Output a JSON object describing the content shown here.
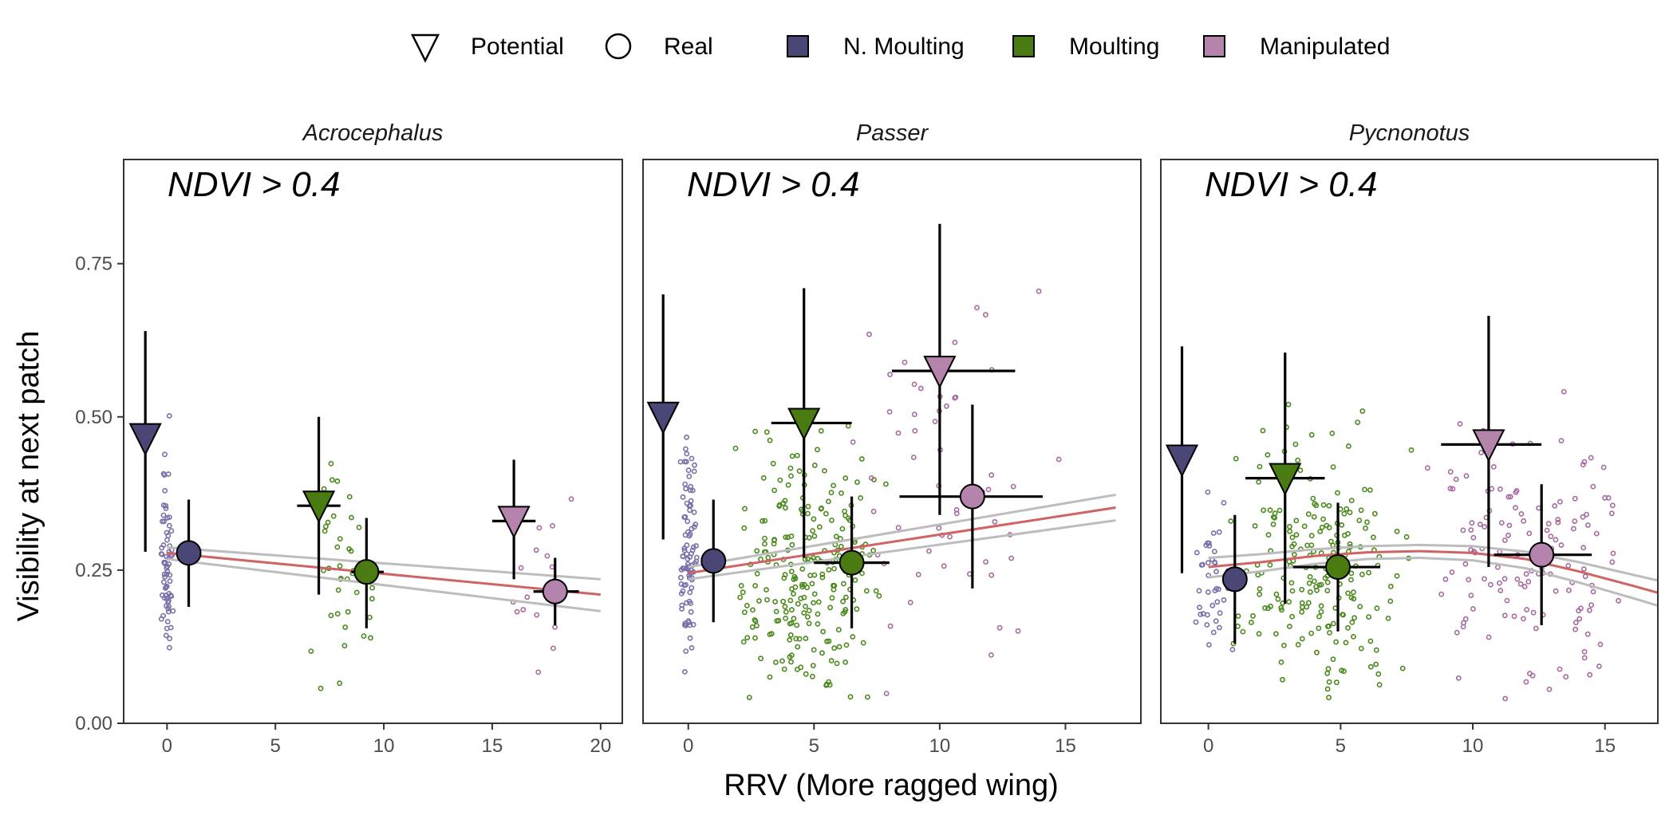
{
  "chart_data": {
    "type": "scatter",
    "xlabel": "RRV (More ragged wing)",
    "ylabel": "Visibility at next patch",
    "ylim": [
      0,
      0.92
    ],
    "yticks": [
      0.0,
      0.25,
      0.5,
      0.75
    ],
    "ytick_labels": [
      "0.00",
      "0.25",
      "0.50",
      "0.75"
    ],
    "grid": false,
    "legend_position": "top",
    "legend": {
      "shapes": [
        {
          "label": "Potential",
          "shape": "triangle-down"
        },
        {
          "label": "Real",
          "shape": "circle"
        }
      ],
      "groups": [
        {
          "label": "N. Moulting",
          "color": "#4a4777"
        },
        {
          "label": "Moulting",
          "color": "#4a7a12"
        },
        {
          "label": "Manipulated",
          "color": "#b484ac"
        }
      ]
    },
    "colors": {
      "nmoult_point": "#7a6fa8",
      "moult_point": "#4a8a1c",
      "manip_point": "#a66aa0",
      "fit": "#d06464",
      "band": "#bdbdbd"
    },
    "panels": [
      {
        "title": "Acrocephalus",
        "annotation": "NDVI > 0.4",
        "xlim": [
          -2,
          21
        ],
        "xticks": [
          0,
          5,
          10,
          15,
          20
        ],
        "xtick_labels": [
          "0",
          "5",
          "10",
          "15",
          "20"
        ],
        "fit": {
          "x": [
            0,
            20
          ],
          "y": [
            0.278,
            0.21
          ],
          "upper": [
            0.287,
            0.235
          ],
          "lower": [
            0.268,
            0.183
          ]
        },
        "summary": [
          {
            "group": "N. Moulting",
            "kind": "Potential",
            "x": -1,
            "y": 0.465,
            "ylo": 0.28,
            "yhi": 0.64,
            "xlo": null,
            "xhi": null
          },
          {
            "group": "N. Moulting",
            "kind": "Real",
            "x": 1,
            "y": 0.278,
            "ylo": 0.19,
            "yhi": 0.365,
            "xlo": null,
            "xhi": null
          },
          {
            "group": "Moulting",
            "kind": "Potential",
            "x": 7,
            "y": 0.355,
            "ylo": 0.21,
            "yhi": 0.5,
            "xlo": 6,
            "xhi": 8
          },
          {
            "group": "Moulting",
            "kind": "Real",
            "x": 9.2,
            "y": 0.247,
            "ylo": 0.155,
            "yhi": 0.335,
            "xlo": 8.5,
            "xhi": 10
          },
          {
            "group": "Manipulated",
            "kind": "Potential",
            "x": 16,
            "y": 0.33,
            "ylo": 0.235,
            "yhi": 0.43,
            "xlo": 15,
            "xhi": 17
          },
          {
            "group": "Manipulated",
            "kind": "Real",
            "x": 17.9,
            "y": 0.215,
            "ylo": 0.16,
            "yhi": 0.27,
            "xlo": 16.9,
            "xhi": 19
          }
        ],
        "points": [
          {
            "group": "N. Moulting",
            "x_center": 0,
            "x_spread": 0.35,
            "n": 70,
            "y_mean": 0.27,
            "y_sd": 0.085,
            "seed": 11
          },
          {
            "group": "Moulting",
            "x_center": 8.2,
            "x_spread": 1.9,
            "n": 40,
            "y_mean": 0.24,
            "y_sd": 0.08,
            "seed": 12
          },
          {
            "group": "Manipulated",
            "x_center": 17,
            "x_spread": 2.0,
            "n": 16,
            "y_mean": 0.22,
            "y_sd": 0.07,
            "seed": 13
          }
        ]
      },
      {
        "title": "Passer",
        "annotation": "NDVI > 0.4",
        "xlim": [
          -1.8,
          18
        ],
        "xticks": [
          0,
          5,
          10,
          15
        ],
        "xtick_labels": [
          "0",
          "5",
          "10",
          "15"
        ],
        "fit": {
          "x": [
            0,
            17
          ],
          "y": [
            0.245,
            0.352
          ],
          "upper": [
            0.255,
            0.373
          ],
          "lower": [
            0.235,
            0.331
          ]
        },
        "summary": [
          {
            "group": "N. Moulting",
            "kind": "Potential",
            "x": -1,
            "y": 0.5,
            "ylo": 0.3,
            "yhi": 0.7,
            "xlo": null,
            "xhi": null
          },
          {
            "group": "N. Moulting",
            "kind": "Real",
            "x": 1,
            "y": 0.265,
            "ylo": 0.165,
            "yhi": 0.365,
            "xlo": null,
            "xhi": null
          },
          {
            "group": "Moulting",
            "kind": "Potential",
            "x": 4.6,
            "y": 0.49,
            "ylo": 0.27,
            "yhi": 0.71,
            "xlo": 3.3,
            "xhi": 6.5
          },
          {
            "group": "Moulting",
            "kind": "Real",
            "x": 6.5,
            "y": 0.262,
            "ylo": 0.155,
            "yhi": 0.37,
            "xlo": 5,
            "xhi": 8
          },
          {
            "group": "Manipulated",
            "kind": "Potential",
            "x": 10,
            "y": 0.575,
            "ylo": 0.34,
            "yhi": 0.815,
            "xlo": 8.1,
            "xhi": 13
          },
          {
            "group": "Manipulated",
            "kind": "Real",
            "x": 11.3,
            "y": 0.37,
            "ylo": 0.22,
            "yhi": 0.52,
            "xlo": 8.4,
            "xhi": 14.1
          }
        ],
        "points": [
          {
            "group": "N. Moulting",
            "x_center": 0,
            "x_spread": 0.4,
            "n": 90,
            "y_mean": 0.27,
            "y_sd": 0.09,
            "seed": 21
          },
          {
            "group": "Moulting",
            "x_center": 4.9,
            "x_spread": 3.1,
            "n": 240,
            "y_mean": 0.25,
            "y_sd": 0.1,
            "seed": 22
          },
          {
            "group": "Manipulated",
            "x_center": 10.5,
            "x_spread": 4.5,
            "n": 55,
            "y_mean": 0.38,
            "y_sd": 0.13,
            "seed": 23
          }
        ]
      },
      {
        "title": "Pycnonotus",
        "annotation": "NDVI > 0.4",
        "xlim": [
          -1.8,
          17
        ],
        "xticks": [
          0,
          5,
          10,
          15
        ],
        "xtick_labels": [
          "0",
          "5",
          "10",
          "15"
        ],
        "fit": {
          "x": [
            0,
            2,
            4,
            6,
            8,
            10,
            12,
            14,
            16,
            17
          ],
          "y": [
            0.255,
            0.263,
            0.273,
            0.279,
            0.281,
            0.278,
            0.268,
            0.248,
            0.225,
            0.213
          ],
          "upper": [
            0.27,
            0.276,
            0.284,
            0.289,
            0.291,
            0.289,
            0.28,
            0.263,
            0.243,
            0.233
          ],
          "lower": [
            0.238,
            0.248,
            0.26,
            0.268,
            0.27,
            0.266,
            0.253,
            0.23,
            0.205,
            0.192
          ]
        },
        "summary": [
          {
            "group": "N. Moulting",
            "kind": "Potential",
            "x": -1,
            "y": 0.43,
            "ylo": 0.245,
            "yhi": 0.615,
            "xlo": null,
            "xhi": null
          },
          {
            "group": "N. Moulting",
            "kind": "Real",
            "x": 1,
            "y": 0.235,
            "ylo": 0.13,
            "yhi": 0.34,
            "xlo": null,
            "xhi": null
          },
          {
            "group": "Moulting",
            "kind": "Potential",
            "x": 2.9,
            "y": 0.4,
            "ylo": 0.195,
            "yhi": 0.605,
            "xlo": 1.4,
            "xhi": 4.4
          },
          {
            "group": "Moulting",
            "kind": "Real",
            "x": 4.9,
            "y": 0.255,
            "ylo": 0.15,
            "yhi": 0.36,
            "xlo": 3.2,
            "xhi": 6.5
          },
          {
            "group": "Manipulated",
            "kind": "Potential",
            "x": 10.6,
            "y": 0.455,
            "ylo": 0.255,
            "yhi": 0.665,
            "xlo": 8.8,
            "xhi": 12.6
          },
          {
            "group": "Manipulated",
            "kind": "Real",
            "x": 12.6,
            "y": 0.275,
            "ylo": 0.16,
            "yhi": 0.39,
            "xlo": 10.8,
            "xhi": 14.5
          }
        ],
        "points": [
          {
            "group": "N. Moulting",
            "x_center": 0.2,
            "x_spread": 0.8,
            "n": 40,
            "y_mean": 0.23,
            "y_sd": 0.06,
            "seed": 31
          },
          {
            "group": "Moulting",
            "x_center": 4.2,
            "x_spread": 3.7,
            "n": 210,
            "y_mean": 0.26,
            "y_sd": 0.1,
            "seed": 32
          },
          {
            "group": "Manipulated",
            "x_center": 12.2,
            "x_spread": 4.4,
            "n": 140,
            "y_mean": 0.27,
            "y_sd": 0.11,
            "seed": 33
          }
        ]
      }
    ]
  }
}
